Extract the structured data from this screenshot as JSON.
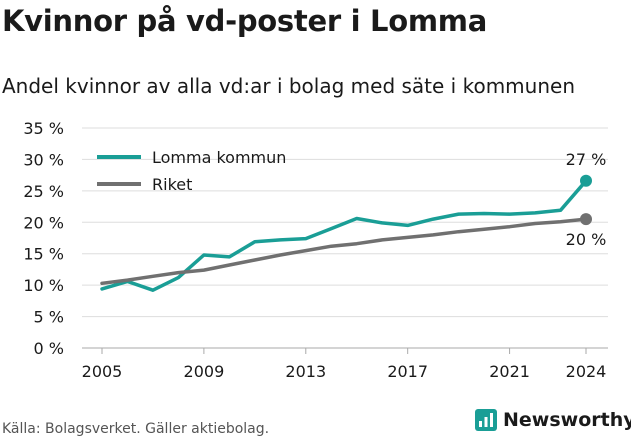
{
  "header": {
    "title": "Kvinnor på vd-poster i Lomma",
    "subtitle": "Andel kvinnor av alla vd:ar i bolag med säte i kommunen"
  },
  "footer": {
    "source": "Källa: Bolagsverket. Gäller aktiebolag.",
    "brand": "Newsworthy"
  },
  "colors": {
    "lomma": "#1a9e96",
    "riket": "#707070",
    "grid": "#dddddd",
    "brand": "#1a9e96"
  },
  "chart_data": {
    "type": "line",
    "title": "Kvinnor på vd-poster i Lomma",
    "subtitle": "Andel kvinnor av alla vd:ar i bolag med säte i kommunen",
    "xlabel": "",
    "ylabel": "",
    "xlim": [
      2005,
      2024
    ],
    "ylim": [
      0,
      35
    ],
    "x_ticks": [
      2005,
      2009,
      2013,
      2017,
      2021,
      2024
    ],
    "y_ticks": [
      0,
      5,
      10,
      15,
      20,
      25,
      30,
      35
    ],
    "y_tick_labels": [
      "0 %",
      "5 %",
      "10 %",
      "15 %",
      "20 %",
      "25 %",
      "30 %",
      "35 %"
    ],
    "grid": "horizontal",
    "legend": "top-left",
    "series": [
      {
        "name": "Lomma kommun",
        "color": "#1a9e96",
        "x": [
          2005,
          2006,
          2007,
          2008,
          2009,
          2010,
          2011,
          2012,
          2013,
          2014,
          2015,
          2016,
          2017,
          2018,
          2019,
          2020,
          2021,
          2022,
          2023,
          2024
        ],
        "values": [
          9.4,
          10.6,
          9.2,
          11.2,
          14.8,
          14.5,
          16.9,
          17.2,
          17.4,
          19.0,
          20.6,
          19.9,
          19.5,
          20.5,
          21.3,
          21.4,
          21.3,
          21.5,
          21.9,
          26.6
        ],
        "end_label": "27 %"
      },
      {
        "name": "Riket",
        "color": "#707070",
        "x": [
          2005,
          2006,
          2007,
          2008,
          2009,
          2010,
          2011,
          2012,
          2013,
          2014,
          2015,
          2016,
          2017,
          2018,
          2019,
          2020,
          2021,
          2022,
          2023,
          2024
        ],
        "values": [
          10.3,
          10.8,
          11.4,
          12.0,
          12.4,
          13.2,
          14.0,
          14.8,
          15.5,
          16.2,
          16.6,
          17.2,
          17.6,
          18.0,
          18.5,
          18.9,
          19.3,
          19.8,
          20.1,
          20.5
        ],
        "end_label": "20 %"
      }
    ]
  }
}
